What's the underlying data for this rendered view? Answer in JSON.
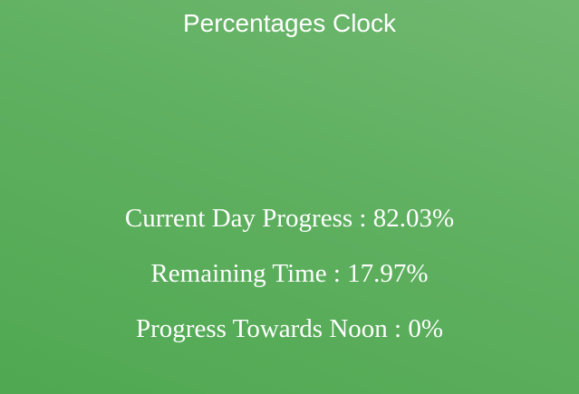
{
  "header": {
    "title": "Percentages Clock"
  },
  "stats": {
    "day_progress": "Current Day Progress : 82.03%",
    "remaining_time": "Remaining Time : 17.97%",
    "noon_progress": "Progress Towards Noon : 0%"
  },
  "colors": {
    "background_light": "#70b870",
    "background_dark": "#50a852",
    "text": "#ffffff"
  }
}
